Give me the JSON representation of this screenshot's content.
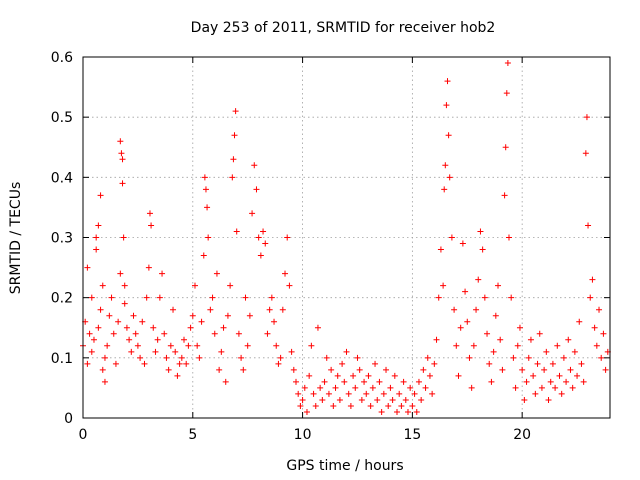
{
  "chart_data": {
    "type": "scatter",
    "title": "Day 253 of 2011, SRMTID for receiver hob2",
    "xlabel": "GPS time / hours",
    "ylabel": "SRMTID / TECUs",
    "xlim": [
      0,
      24
    ],
    "ylim": [
      0,
      0.6
    ],
    "xticks": [
      0,
      5,
      10,
      15,
      20
    ],
    "yticks": [
      0,
      0.1,
      0.2,
      0.3,
      0.4,
      0.5,
      0.6
    ],
    "xtick_labels": [
      "0",
      "5",
      "10",
      "15",
      "20"
    ],
    "ytick_labels": [
      "0",
      "0.1",
      "0.2",
      "0.3",
      "0.4",
      "0.5",
      "0.6"
    ],
    "grid": true,
    "marker": "+",
    "color": "#ff0000",
    "series": [
      {
        "name": "SRMTID",
        "points": [
          [
            0.0,
            0.12
          ],
          [
            0.1,
            0.16
          ],
          [
            0.2,
            0.09
          ],
          [
            0.2,
            0.25
          ],
          [
            0.3,
            0.14
          ],
          [
            0.4,
            0.2
          ],
          [
            0.4,
            0.11
          ],
          [
            0.5,
            0.13
          ],
          [
            0.6,
            0.28
          ],
          [
            0.6,
            0.3
          ],
          [
            0.7,
            0.32
          ],
          [
            0.7,
            0.15
          ],
          [
            0.8,
            0.37
          ],
          [
            0.8,
            0.18
          ],
          [
            0.9,
            0.22
          ],
          [
            0.9,
            0.08
          ],
          [
            1.0,
            0.06
          ],
          [
            1.0,
            0.1
          ],
          [
            1.1,
            0.12
          ],
          [
            1.2,
            0.17
          ],
          [
            1.3,
            0.2
          ],
          [
            1.4,
            0.14
          ],
          [
            1.5,
            0.09
          ],
          [
            1.6,
            0.16
          ],
          [
            1.7,
            0.24
          ],
          [
            1.7,
            0.46
          ],
          [
            1.75,
            0.44
          ],
          [
            1.8,
            0.43
          ],
          [
            1.8,
            0.39
          ],
          [
            1.85,
            0.3
          ],
          [
            1.9,
            0.22
          ],
          [
            1.9,
            0.19
          ],
          [
            2.0,
            0.15
          ],
          [
            2.1,
            0.13
          ],
          [
            2.2,
            0.11
          ],
          [
            2.3,
            0.17
          ],
          [
            2.4,
            0.14
          ],
          [
            2.5,
            0.12
          ],
          [
            2.6,
            0.1
          ],
          [
            2.7,
            0.16
          ],
          [
            2.8,
            0.09
          ],
          [
            2.9,
            0.2
          ],
          [
            3.0,
            0.25
          ],
          [
            3.05,
            0.34
          ],
          [
            3.1,
            0.32
          ],
          [
            3.2,
            0.15
          ],
          [
            3.3,
            0.11
          ],
          [
            3.4,
            0.13
          ],
          [
            3.5,
            0.2
          ],
          [
            3.6,
            0.24
          ],
          [
            3.7,
            0.14
          ],
          [
            3.8,
            0.1
          ],
          [
            3.9,
            0.08
          ],
          [
            4.0,
            0.12
          ],
          [
            4.1,
            0.18
          ],
          [
            4.2,
            0.11
          ],
          [
            4.3,
            0.07
          ],
          [
            4.4,
            0.09
          ],
          [
            4.5,
            0.1
          ],
          [
            4.6,
            0.13
          ],
          [
            4.7,
            0.09
          ],
          [
            4.8,
            0.12
          ],
          [
            4.9,
            0.15
          ],
          [
            5.0,
            0.17
          ],
          [
            5.1,
            0.22
          ],
          [
            5.2,
            0.12
          ],
          [
            5.3,
            0.1
          ],
          [
            5.4,
            0.16
          ],
          [
            5.5,
            0.27
          ],
          [
            5.55,
            0.4
          ],
          [
            5.6,
            0.38
          ],
          [
            5.65,
            0.35
          ],
          [
            5.7,
            0.3
          ],
          [
            5.8,
            0.18
          ],
          [
            5.9,
            0.2
          ],
          [
            6.0,
            0.14
          ],
          [
            6.1,
            0.24
          ],
          [
            6.2,
            0.08
          ],
          [
            6.3,
            0.11
          ],
          [
            6.4,
            0.15
          ],
          [
            6.5,
            0.06
          ],
          [
            6.6,
            0.17
          ],
          [
            6.7,
            0.22
          ],
          [
            6.8,
            0.4
          ],
          [
            6.85,
            0.43
          ],
          [
            6.9,
            0.47
          ],
          [
            6.95,
            0.51
          ],
          [
            7.0,
            0.31
          ],
          [
            7.1,
            0.14
          ],
          [
            7.2,
            0.1
          ],
          [
            7.3,
            0.08
          ],
          [
            7.4,
            0.2
          ],
          [
            7.5,
            0.12
          ],
          [
            7.6,
            0.17
          ],
          [
            7.7,
            0.34
          ],
          [
            7.8,
            0.42
          ],
          [
            7.9,
            0.38
          ],
          [
            8.0,
            0.3
          ],
          [
            8.1,
            0.27
          ],
          [
            8.2,
            0.31
          ],
          [
            8.3,
            0.29
          ],
          [
            8.4,
            0.14
          ],
          [
            8.5,
            0.18
          ],
          [
            8.6,
            0.2
          ],
          [
            8.7,
            0.16
          ],
          [
            8.8,
            0.12
          ],
          [
            8.9,
            0.09
          ],
          [
            9.0,
            0.1
          ],
          [
            9.1,
            0.18
          ],
          [
            9.2,
            0.24
          ],
          [
            9.3,
            0.3
          ],
          [
            9.4,
            0.22
          ],
          [
            9.5,
            0.11
          ],
          [
            9.6,
            0.08
          ],
          [
            9.7,
            0.06
          ],
          [
            9.8,
            0.04
          ],
          [
            9.9,
            0.02
          ],
          [
            10.0,
            0.03
          ],
          [
            10.1,
            0.05
          ],
          [
            10.2,
            0.01
          ],
          [
            10.3,
            0.07
          ],
          [
            10.4,
            0.12
          ],
          [
            10.5,
            0.04
          ],
          [
            10.6,
            0.02
          ],
          [
            10.7,
            0.15
          ],
          [
            10.8,
            0.05
          ],
          [
            10.9,
            0.03
          ],
          [
            11.0,
            0.06
          ],
          [
            11.1,
            0.1
          ],
          [
            11.2,
            0.04
          ],
          [
            11.3,
            0.08
          ],
          [
            11.4,
            0.02
          ],
          [
            11.5,
            0.05
          ],
          [
            11.6,
            0.07
          ],
          [
            11.7,
            0.03
          ],
          [
            11.8,
            0.09
          ],
          [
            11.9,
            0.06
          ],
          [
            12.0,
            0.11
          ],
          [
            12.1,
            0.04
          ],
          [
            12.2,
            0.02
          ],
          [
            12.3,
            0.07
          ],
          [
            12.4,
            0.05
          ],
          [
            12.5,
            0.1
          ],
          [
            12.6,
            0.08
          ],
          [
            12.7,
            0.03
          ],
          [
            12.8,
            0.06
          ],
          [
            12.9,
            0.04
          ],
          [
            13.0,
            0.07
          ],
          [
            13.1,
            0.02
          ],
          [
            13.2,
            0.05
          ],
          [
            13.3,
            0.09
          ],
          [
            13.4,
            0.03
          ],
          [
            13.5,
            0.06
          ],
          [
            13.6,
            0.01
          ],
          [
            13.7,
            0.04
          ],
          [
            13.8,
            0.08
          ],
          [
            13.9,
            0.02
          ],
          [
            14.0,
            0.05
          ],
          [
            14.1,
            0.03
          ],
          [
            14.2,
            0.07
          ],
          [
            14.3,
            0.01
          ],
          [
            14.4,
            0.04
          ],
          [
            14.5,
            0.02
          ],
          [
            14.6,
            0.06
          ],
          [
            14.7,
            0.03
          ],
          [
            14.8,
            0.01
          ],
          [
            14.9,
            0.05
          ],
          [
            15.0,
            0.02
          ],
          [
            15.1,
            0.04
          ],
          [
            15.2,
            0.01
          ],
          [
            15.3,
            0.06
          ],
          [
            15.4,
            0.03
          ],
          [
            15.5,
            0.08
          ],
          [
            15.6,
            0.05
          ],
          [
            15.7,
            0.1
          ],
          [
            15.8,
            0.07
          ],
          [
            15.9,
            0.04
          ],
          [
            16.0,
            0.09
          ],
          [
            16.1,
            0.13
          ],
          [
            16.2,
            0.2
          ],
          [
            16.3,
            0.28
          ],
          [
            16.4,
            0.22
          ],
          [
            16.45,
            0.38
          ],
          [
            16.5,
            0.42
          ],
          [
            16.55,
            0.52
          ],
          [
            16.6,
            0.56
          ],
          [
            16.65,
            0.47
          ],
          [
            16.7,
            0.4
          ],
          [
            16.8,
            0.3
          ],
          [
            16.9,
            0.18
          ],
          [
            17.0,
            0.12
          ],
          [
            17.1,
            0.07
          ],
          [
            17.2,
            0.15
          ],
          [
            17.3,
            0.29
          ],
          [
            17.4,
            0.21
          ],
          [
            17.5,
            0.16
          ],
          [
            17.6,
            0.1
          ],
          [
            17.7,
            0.05
          ],
          [
            17.8,
            0.12
          ],
          [
            17.9,
            0.18
          ],
          [
            18.0,
            0.23
          ],
          [
            18.1,
            0.31
          ],
          [
            18.2,
            0.28
          ],
          [
            18.3,
            0.2
          ],
          [
            18.4,
            0.14
          ],
          [
            18.5,
            0.09
          ],
          [
            18.6,
            0.06
          ],
          [
            18.7,
            0.11
          ],
          [
            18.8,
            0.17
          ],
          [
            18.9,
            0.22
          ],
          [
            19.0,
            0.13
          ],
          [
            19.1,
            0.08
          ],
          [
            19.2,
            0.37
          ],
          [
            19.25,
            0.45
          ],
          [
            19.3,
            0.54
          ],
          [
            19.35,
            0.59
          ],
          [
            19.4,
            0.3
          ],
          [
            19.5,
            0.2
          ],
          [
            19.6,
            0.1
          ],
          [
            19.7,
            0.05
          ],
          [
            19.8,
            0.12
          ],
          [
            19.9,
            0.15
          ],
          [
            20.0,
            0.08
          ],
          [
            20.1,
            0.03
          ],
          [
            20.2,
            0.06
          ],
          [
            20.3,
            0.1
          ],
          [
            20.4,
            0.13
          ],
          [
            20.5,
            0.07
          ],
          [
            20.6,
            0.04
          ],
          [
            20.7,
            0.09
          ],
          [
            20.8,
            0.14
          ],
          [
            20.9,
            0.05
          ],
          [
            21.0,
            0.08
          ],
          [
            21.1,
            0.11
          ],
          [
            21.2,
            0.03
          ],
          [
            21.3,
            0.06
          ],
          [
            21.4,
            0.09
          ],
          [
            21.5,
            0.05
          ],
          [
            21.6,
            0.12
          ],
          [
            21.7,
            0.07
          ],
          [
            21.8,
            0.04
          ],
          [
            21.9,
            0.1
          ],
          [
            22.0,
            0.06
          ],
          [
            22.1,
            0.13
          ],
          [
            22.2,
            0.08
          ],
          [
            22.3,
            0.05
          ],
          [
            22.4,
            0.11
          ],
          [
            22.5,
            0.07
          ],
          [
            22.6,
            0.16
          ],
          [
            22.7,
            0.09
          ],
          [
            22.8,
            0.06
          ],
          [
            22.9,
            0.44
          ],
          [
            22.95,
            0.5
          ],
          [
            23.0,
            0.32
          ],
          [
            23.1,
            0.2
          ],
          [
            23.2,
            0.23
          ],
          [
            23.3,
            0.15
          ],
          [
            23.4,
            0.12
          ],
          [
            23.5,
            0.18
          ],
          [
            23.6,
            0.1
          ],
          [
            23.7,
            0.14
          ],
          [
            23.8,
            0.08
          ],
          [
            23.9,
            0.11
          ]
        ]
      }
    ]
  }
}
